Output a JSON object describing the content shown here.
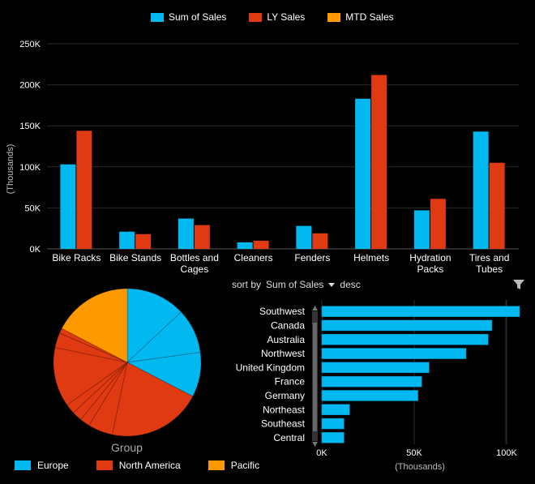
{
  "top_legend": [
    {
      "label": "Sum of Sales",
      "color": "#01B8F1"
    },
    {
      "label": "LY Sales",
      "color": "#E03A12"
    },
    {
      "label": "MTD Sales",
      "color": "#FE9900"
    }
  ],
  "sort_bar": {
    "prefix": "sort by",
    "field": "Sum of Sales",
    "order": "desc"
  },
  "pie_title": "Group",
  "bottom_legend": [
    {
      "label": "Europe",
      "color": "#01B8F1"
    },
    {
      "label": "North America",
      "color": "#E03A12"
    },
    {
      "label": "Pacific",
      "color": "#FE9900"
    }
  ],
  "chart_data": [
    {
      "type": "bar",
      "categories": [
        "Bike Racks",
        "Bike Stands",
        "Bottles and Cages",
        "Cleaners",
        "Fenders",
        "Helmets",
        "Hydration Packs",
        "Tires and Tubes"
      ],
      "category_lines": [
        [
          "Bike Racks"
        ],
        [
          "Bike Stands"
        ],
        [
          "Bottles and",
          "Cages"
        ],
        [
          "Cleaners"
        ],
        [
          "Fenders"
        ],
        [
          "Helmets"
        ],
        [
          "Hydration",
          "Packs"
        ],
        [
          "Tires and",
          "Tubes"
        ]
      ],
      "series": [
        {
          "name": "Sum of Sales",
          "color": "#01B8F1",
          "values": [
            103,
            21,
            37,
            8,
            28,
            183,
            47,
            143
          ]
        },
        {
          "name": "LY Sales",
          "color": "#E03A12",
          "values": [
            144,
            18,
            29,
            10,
            19,
            212,
            61,
            105
          ]
        }
      ],
      "ylabel": "(Thousands)",
      "yticks": [
        "0K",
        "50K",
        "100K",
        "150K",
        "200K",
        "250K"
      ],
      "ytick_values": [
        0,
        50,
        100,
        150,
        200,
        250
      ],
      "ylim": [
        0,
        250
      ],
      "grid": true
    },
    {
      "type": "pie",
      "title": "Group",
      "slices": [
        {
          "group": "Europe",
          "color": "#01B8F1",
          "values": [
            12,
            9,
            9
          ]
        },
        {
          "group": "North America",
          "color": "#E03A12",
          "values": [
            19,
            5,
            2,
            2,
            2,
            12,
            3,
            1
          ]
        },
        {
          "group": "Pacific",
          "color": "#FE9900",
          "values": [
            16
          ]
        }
      ]
    },
    {
      "type": "bar",
      "orientation": "horizontal",
      "categories": [
        "Southwest",
        "Canada",
        "Australia",
        "Northwest",
        "United Kingdom",
        "France",
        "Germany",
        "Northeast",
        "Southeast",
        "Central"
      ],
      "values": [
        107,
        92,
        90,
        78,
        58,
        54,
        52,
        15,
        12,
        12
      ],
      "color": "#01B8F1",
      "xlabel": "(Thousands)",
      "xticks": [
        "0K",
        "50K",
        "100K"
      ],
      "xtick_values": [
        0,
        50,
        100
      ],
      "xlim": [
        0,
        107
      ]
    }
  ]
}
